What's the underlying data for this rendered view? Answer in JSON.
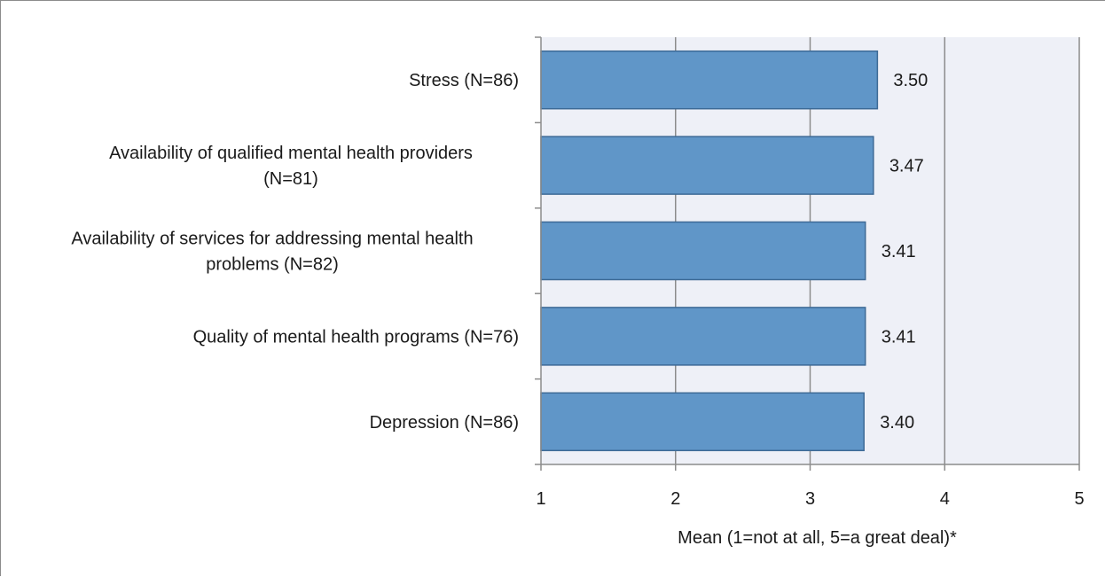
{
  "chart_data": {
    "type": "bar",
    "orientation": "horizontal",
    "categories": [
      "Stress (N=86)",
      "Availability of qualified mental health providers (N=81)",
      "Availability of services for addressing mental health problems (N=82)",
      "Quality of mental health programs (N=76)",
      "Depression (N=86)"
    ],
    "category_label_lines": [
      [
        "Stress (N=86)"
      ],
      [
        "Availability of qualified mental health providers",
        "(N=81)"
      ],
      [
        "Availability of services for addressing mental health",
        "problems (N=82)"
      ],
      [
        "Quality of mental health programs (N=76)"
      ],
      [
        "Depression (N=86)"
      ]
    ],
    "values": [
      3.5,
      3.47,
      3.41,
      3.41,
      3.4
    ],
    "value_labels": [
      "3.50",
      "3.47",
      "3.41",
      "3.41",
      "3.40"
    ],
    "xlabel": "Mean (1=not at all, 5=a great deal)*",
    "ylabel": "",
    "xlim": [
      1,
      5
    ],
    "xticks": [
      1,
      2,
      3,
      4,
      5
    ],
    "grid": true,
    "legend": "none",
    "colors": {
      "bar_fill": "#6096c8",
      "bar_stroke": "#3d6a96",
      "plot_bg": "#eef0f7",
      "grid": "#8c8c8c",
      "axis": "#8c8c8c"
    }
  }
}
